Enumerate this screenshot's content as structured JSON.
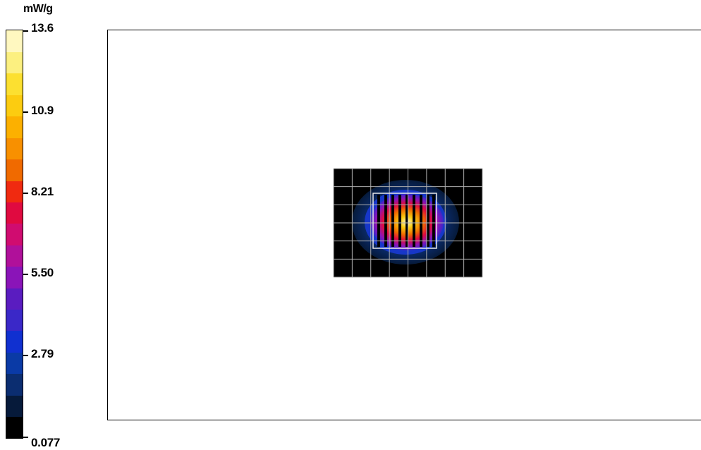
{
  "chart_data": {
    "type": "heatmap",
    "unit": "mW/g",
    "color_scale": {
      "min": 0.077,
      "max": 13.6,
      "tick_labels": [
        "13.6",
        "10.9",
        "8.21",
        "5.50",
        "2.79",
        "0.077"
      ],
      "colors_bottom_to_top": [
        "#000000",
        "#061a3a",
        "#0b2d70",
        "#0a3aa6",
        "#1030d0",
        "#3a28c8",
        "#5a1cc0",
        "#8a14b8",
        "#b0109a",
        "#d00c70",
        "#e00a40",
        "#f02a10",
        "#f06a00",
        "#f89000",
        "#fcb000",
        "#fccc10",
        "#fce030",
        "#fcf080",
        "#fff8c0"
      ]
    },
    "grid": true,
    "grid_columns": 8,
    "grid_rows": 6,
    "peak_value": 13.6,
    "background_value": 0.077
  }
}
